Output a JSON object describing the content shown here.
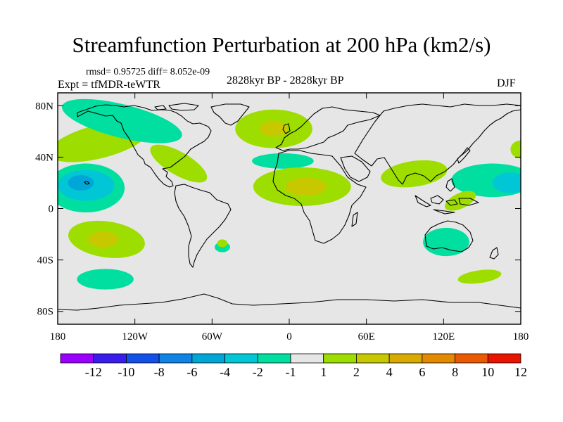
{
  "header": {
    "title": "Streamfunction Perturbation at 200 hPa (km2/s)",
    "stats": "rmsd= 0.95725 diff= 8.052e-09",
    "expt": "Expt = tfMDR-teWTR",
    "period": "2828kyr BP - 2828kyr BP",
    "season": "DJF"
  },
  "chart_data": {
    "type": "heatmap",
    "title": "Streamfunction Perturbation at 200 hPa (km2/s)",
    "projection": "cylindrical-equidistant",
    "x_range": [
      -180,
      180
    ],
    "y_range": [
      -90,
      90
    ],
    "x_ticks": [
      {
        "value": -180,
        "label": "180"
      },
      {
        "value": -120,
        "label": "120W"
      },
      {
        "value": -60,
        "label": "60W"
      },
      {
        "value": 0,
        "label": "0"
      },
      {
        "value": 60,
        "label": "60E"
      },
      {
        "value": 120,
        "label": "120E"
      },
      {
        "value": 180,
        "label": "180"
      }
    ],
    "y_ticks": [
      {
        "value": 80,
        "label": "80N"
      },
      {
        "value": 40,
        "label": "40N"
      },
      {
        "value": 0,
        "label": "0"
      },
      {
        "value": -40,
        "label": "40S"
      },
      {
        "value": -80,
        "label": "80S"
      }
    ],
    "background_color": "#e6e6e6",
    "colorbar": {
      "levels": [
        "-12",
        "-10",
        "-8",
        "-6",
        "-4",
        "-2",
        "-1",
        "1",
        "2",
        "4",
        "6",
        "8",
        "10",
        "12"
      ],
      "colors": [
        "#9b00ff",
        "#3a1dea",
        "#1350e8",
        "#0f84e6",
        "#00a6d8",
        "#00c6d6",
        "#00dfa0",
        "#e6e6e6",
        "#9dde00",
        "#c8c800",
        "#d9aa00",
        "#e38a00",
        "#eb5a00",
        "#e81400"
      ]
    },
    "features": [
      {
        "name": "north-pacific-high",
        "lon": -148,
        "lat": 52,
        "rx": 40,
        "ry": 13,
        "rot": -14,
        "value": 1.5,
        "color": "#9dde00"
      },
      {
        "name": "alaska-canada-trough",
        "lon": -130,
        "lat": 68,
        "rx": 48,
        "ry": 13,
        "rot": 14,
        "value": -1.5,
        "color": "#00dfa0"
      },
      {
        "name": "north-america-southeast-high",
        "lon": -86,
        "lat": 35,
        "rx": 25,
        "ry": 9,
        "rot": 30,
        "value": 1.5,
        "color": "#9dde00"
      },
      {
        "name": "central-pacific-trough",
        "lon": -158,
        "lat": 16,
        "rx": 30,
        "ry": 19,
        "rot": 0,
        "value": -1.5,
        "color": "#00dfa0"
      },
      {
        "name": "central-pacific-trough-core",
        "lon": -158,
        "lat": 18,
        "rx": 22,
        "ry": 12,
        "rot": 0,
        "value": -2.5,
        "color": "#00c6d6"
      },
      {
        "name": "central-pacific-trough-center",
        "lon": -162,
        "lat": 20,
        "rx": 10,
        "ry": 6,
        "rot": 0,
        "value": -4.5,
        "color": "#00a6d8"
      },
      {
        "name": "south-pacific-high",
        "lon": -142,
        "lat": -24,
        "rx": 30,
        "ry": 14,
        "rot": 8,
        "value": 1.5,
        "color": "#9dde00"
      },
      {
        "name": "south-pacific-high-core",
        "lon": -145,
        "lat": -24,
        "rx": 12,
        "ry": 6,
        "rot": 0,
        "value": 3,
        "color": "#c8c800"
      },
      {
        "name": "south-pacific-trough",
        "lon": -143,
        "lat": -55,
        "rx": 22,
        "ry": 8,
        "rot": 0,
        "value": -1.5,
        "color": "#00dfa0"
      },
      {
        "name": "south-america-small-trough",
        "lon": -52,
        "lat": -30,
        "rx": 6,
        "ry": 4,
        "rot": 0,
        "value": -1.5,
        "color": "#00dfa0"
      },
      {
        "name": "south-america-small-high",
        "lon": -52,
        "lat": -27,
        "rx": 4,
        "ry": 3,
        "rot": 0,
        "value": 1.5,
        "color": "#9dde00"
      },
      {
        "name": "europe-high",
        "lon": -12,
        "lat": 62,
        "rx": 30,
        "ry": 15,
        "rot": 0,
        "value": 1.5,
        "color": "#9dde00"
      },
      {
        "name": "europe-high-core",
        "lon": -12,
        "lat": 62,
        "rx": 11,
        "ry": 6,
        "rot": 0,
        "value": 3,
        "color": "#c8c800"
      },
      {
        "name": "north-atlantic-trough",
        "lon": -5,
        "lat": 37,
        "rx": 24,
        "ry": 6,
        "rot": 0,
        "value": -1.5,
        "color": "#00dfa0"
      },
      {
        "name": "africa-high",
        "lon": 10,
        "lat": 17,
        "rx": 38,
        "ry": 15,
        "rot": 0,
        "value": 1.5,
        "color": "#9dde00"
      },
      {
        "name": "africa-high-core",
        "lon": 13,
        "lat": 17,
        "rx": 16,
        "ry": 7,
        "rot": 0,
        "value": 3,
        "color": "#c8c800"
      },
      {
        "name": "asia-high",
        "lon": 97,
        "lat": 27,
        "rx": 26,
        "ry": 10,
        "rot": -8,
        "value": 1.5,
        "color": "#9dde00"
      },
      {
        "name": "west-pacific-trough",
        "lon": 158,
        "lat": 22,
        "rx": 32,
        "ry": 13,
        "rot": 0,
        "value": -1.5,
        "color": "#00dfa0"
      },
      {
        "name": "west-pacific-trough-core",
        "lon": 172,
        "lat": 20,
        "rx": 14,
        "ry": 8,
        "rot": 0,
        "value": -2.5,
        "color": "#00c6d6"
      },
      {
        "name": "philippine-sea-high",
        "lon": 133,
        "lat": 6,
        "rx": 13,
        "ry": 6,
        "rot": -25,
        "value": 1.5,
        "color": "#9dde00"
      },
      {
        "name": "australia-trough",
        "lon": 122,
        "lat": -26,
        "rx": 18,
        "ry": 11,
        "rot": 0,
        "value": -1.5,
        "color": "#00dfa0"
      },
      {
        "name": "tasman-sea-high",
        "lon": 148,
        "lat": -53,
        "rx": 17,
        "ry": 5,
        "rot": -8,
        "value": 1.5,
        "color": "#9dde00"
      },
      {
        "name": "east-pacific-high",
        "lon": 180,
        "lat": 46,
        "rx": 8,
        "ry": 7,
        "rot": 0,
        "value": 1.5,
        "color": "#9dde00"
      }
    ]
  }
}
